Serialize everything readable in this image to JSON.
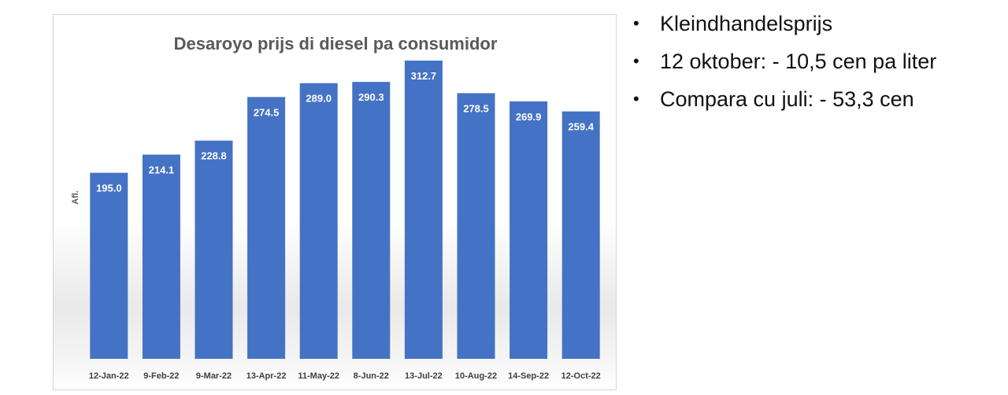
{
  "chart_data": {
    "type": "bar",
    "title": "Desaroyo prijs di diesel pa consumidor",
    "ylabel": "Afl.",
    "xlabel": "",
    "categories": [
      "12-Jan-22",
      "9-Feb-22",
      "9-Mar-22",
      "13-Apr-22",
      "11-May-22",
      "8-Jun-22",
      "13-Jul-22",
      "10-Aug-22",
      "14-Sep-22",
      "12-Oct-22"
    ],
    "values": [
      195.0,
      214.1,
      228.8,
      274.5,
      289.0,
      290.3,
      312.7,
      278.5,
      269.9,
      259.4
    ],
    "value_labels": [
      "195.0",
      "214.1",
      "228.8",
      "274.5",
      "289.0",
      "290.3",
      "312.7",
      "278.5",
      "269.9",
      "259.4"
    ],
    "ylim": [
      0,
      330
    ],
    "grid": false,
    "legend": "none",
    "bar_color": "#4472c4"
  },
  "bullets": {
    "items": [
      "Kleindhandelsprijs",
      "12 oktober: - 10,5 cen pa liter",
      "Compara cu juli: - 53,3 cen"
    ]
  }
}
